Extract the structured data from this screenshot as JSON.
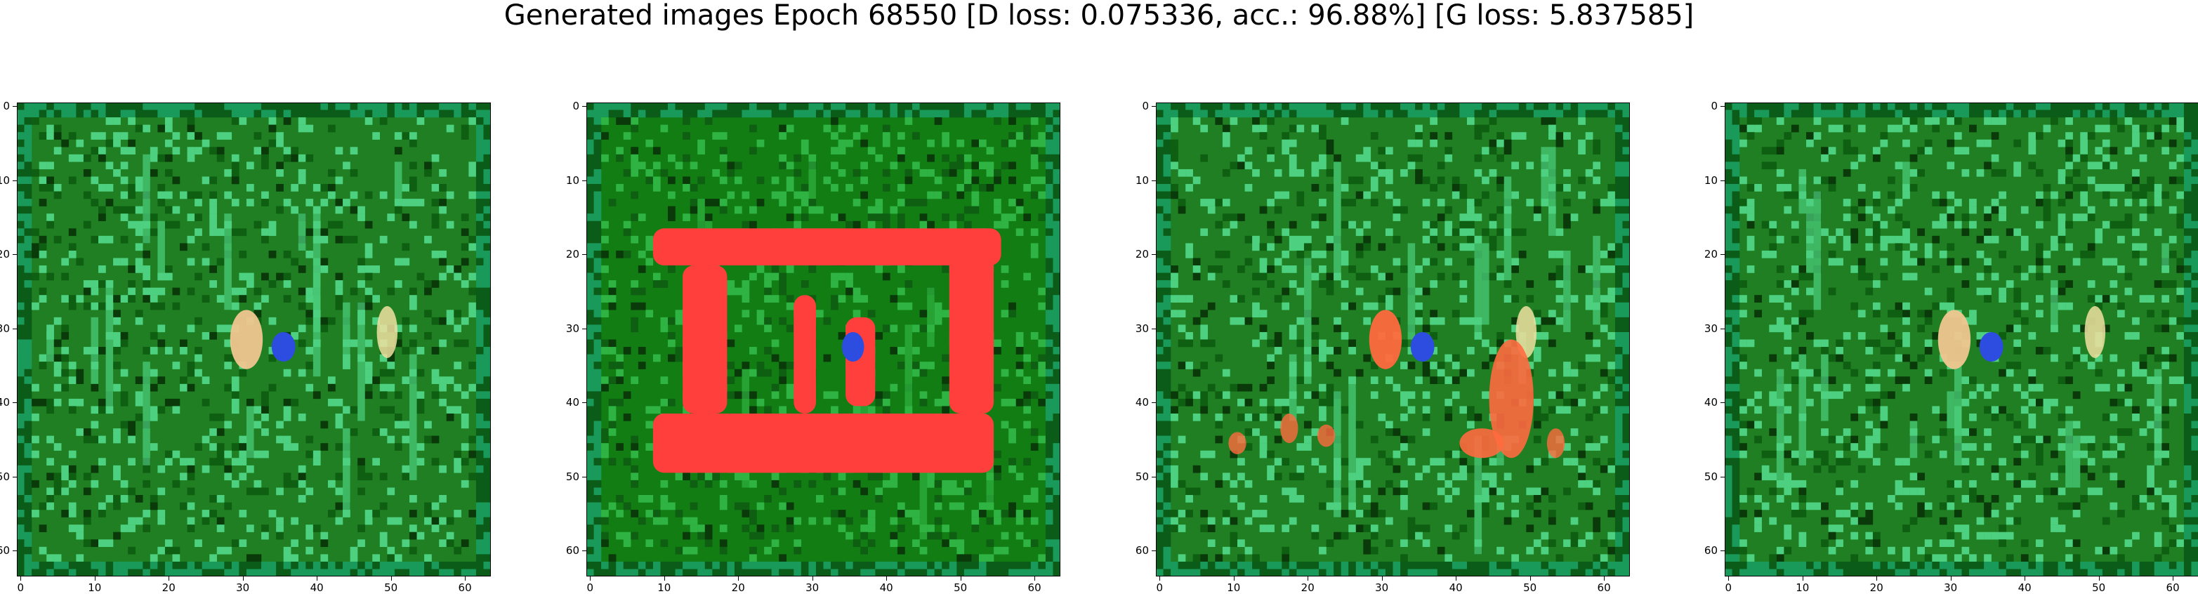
{
  "figure": {
    "title": "Generated images Epoch 68550 [D loss: 0.075336, acc.: 96.88%] [G loss: 5.837585]"
  },
  "axes": {
    "ticks": [
      "0",
      "10",
      "20",
      "30",
      "40",
      "50",
      "60"
    ]
  },
  "panels": [
    {
      "name": "generated-image-1",
      "palette": {
        "base": "#1f7f22",
        "accent": "#4dd07f",
        "hot": "#f0c690",
        "blue": "#2c4de0"
      }
    },
    {
      "name": "generated-image-2",
      "palette": {
        "base": "#117d13",
        "accent": "#2fb342",
        "hot": "#ff3f3b",
        "blue": "#2c4de0"
      }
    },
    {
      "name": "generated-image-3",
      "palette": {
        "base": "#1f7f22",
        "accent": "#4dd07f",
        "hot": "#ff6a3f",
        "blue": "#2c4de0"
      }
    },
    {
      "name": "generated-image-4",
      "palette": {
        "base": "#1f7f22",
        "accent": "#4dd07f",
        "hot": "#f0c690",
        "blue": "#2c4de0"
      }
    }
  ]
}
